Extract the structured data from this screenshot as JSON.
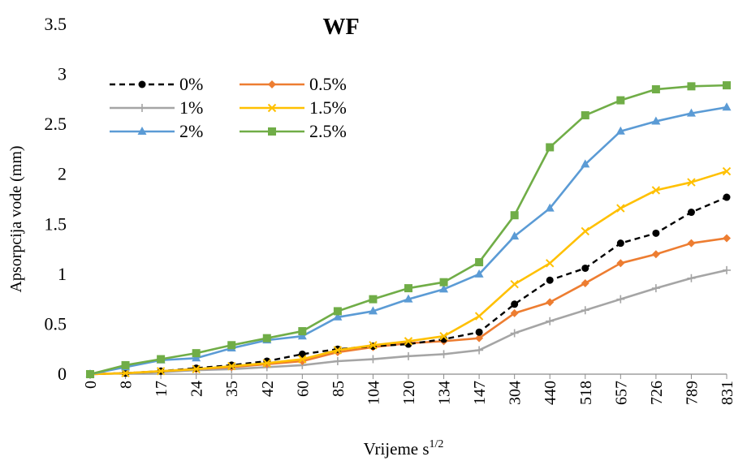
{
  "chart_data": {
    "type": "line",
    "title": "WF",
    "ylabel": "Apsorpcija vode (mm)",
    "xlabel": "Vrijeme s",
    "xlabel_superscript": "1/2",
    "ylim": [
      0,
      3.5
    ],
    "yticks": [
      "0",
      "0.5",
      "1",
      "1.5",
      "2",
      "2.5",
      "3",
      "3.5"
    ],
    "categories": [
      "0",
      "8",
      "17",
      "24",
      "35",
      "42",
      "60",
      "85",
      "104",
      "120",
      "134",
      "147",
      "304",
      "440",
      "518",
      "657",
      "726",
      "789",
      "831"
    ],
    "grid": false,
    "legend_position": "top-left",
    "series": [
      {
        "name": "0%",
        "color": "#000000",
        "marker": "circle",
        "dashed": true,
        "values": [
          0,
          0.01,
          0.03,
          0.06,
          0.09,
          0.13,
          0.2,
          0.25,
          0.28,
          0.3,
          0.35,
          0.42,
          0.7,
          0.94,
          1.06,
          1.31,
          1.41,
          1.62,
          1.77
        ]
      },
      {
        "name": "0.5%",
        "color": "#ED7D31",
        "marker": "diamond",
        "dashed": false,
        "values": [
          0,
          0.01,
          0.03,
          0.05,
          0.07,
          0.1,
          0.13,
          0.22,
          0.27,
          0.31,
          0.33,
          0.36,
          0.61,
          0.72,
          0.91,
          1.11,
          1.2,
          1.31,
          1.36
        ]
      },
      {
        "name": "1%",
        "color": "#A5A5A5",
        "marker": "plus",
        "dashed": false,
        "values": [
          0,
          0.01,
          0.02,
          0.04,
          0.05,
          0.07,
          0.09,
          0.13,
          0.15,
          0.18,
          0.2,
          0.24,
          0.41,
          0.53,
          0.64,
          0.75,
          0.86,
          0.96,
          1.04
        ]
      },
      {
        "name": "1.5%",
        "color": "#FFC000",
        "marker": "x",
        "dashed": false,
        "values": [
          0,
          0.01,
          0.03,
          0.05,
          0.08,
          0.11,
          0.15,
          0.24,
          0.29,
          0.33,
          0.38,
          0.58,
          0.9,
          1.11,
          1.43,
          1.66,
          1.84,
          1.92,
          2.03
        ]
      },
      {
        "name": "2%",
        "color": "#5B9BD5",
        "marker": "triangle",
        "dashed": false,
        "values": [
          0,
          0.07,
          0.14,
          0.16,
          0.26,
          0.34,
          0.38,
          0.57,
          0.63,
          0.75,
          0.85,
          1.0,
          1.38,
          1.66,
          2.1,
          2.43,
          2.53,
          2.61,
          2.67
        ]
      },
      {
        "name": "2.5%",
        "color": "#70AD47",
        "marker": "square",
        "dashed": false,
        "values": [
          0,
          0.09,
          0.15,
          0.21,
          0.29,
          0.36,
          0.43,
          0.63,
          0.75,
          0.86,
          0.92,
          1.12,
          1.59,
          2.27,
          2.59,
          2.74,
          2.85,
          2.88,
          2.89
        ]
      }
    ]
  }
}
